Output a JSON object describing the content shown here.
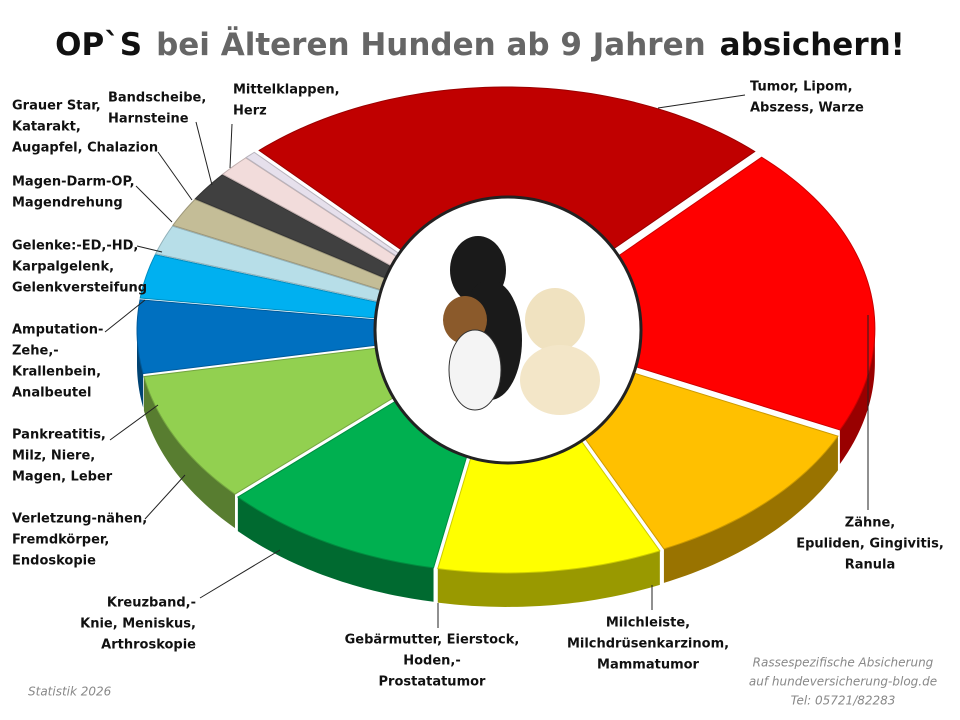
{
  "chart_data": {
    "type": "donut3d",
    "title_parts": [
      {
        "text": "OP`S",
        "color": "#111111"
      },
      {
        "text": "bei Älteren Hunden ab 9 Jahren",
        "color": "#666666"
      },
      {
        "text": "absichern!",
        "color": "#111111"
      }
    ],
    "labels": [
      [
        "Tumor, Lipom,",
        "Abszess, Warze"
      ],
      [
        "Zähne,",
        "Epuliden, Gingivitis,",
        "Ranula"
      ],
      [
        "Milchleiste,",
        "Milchdrüsenkarzinom,",
        "Mammatumor"
      ],
      [
        "Gebärmutter, Eierstock,",
        "Hoden,-",
        "Prostatatumor"
      ],
      [
        "Kreuzband,-",
        "Knie, Meniskus,",
        "Arthroskopie"
      ],
      [
        "Verletzung-nähen,",
        "Fremdkörper,",
        "Endoskopie"
      ],
      [
        "Pankreatitis,",
        "Milz, Niere,",
        "Magen, Leber"
      ],
      [
        "Amputation-",
        "Zehe,-",
        "Krallenbein,",
        "Analbeutel"
      ],
      [
        "Gelenke:-ED,-HD,",
        "Karpalgelenk,",
        "Gelenkversteifung"
      ],
      [
        "Magen-Darm-OP,",
        "Magendrehung"
      ],
      [
        "Grauer Star,",
        "Katarakt,",
        "Augapfel, Chalazion"
      ],
      [
        "Bandscheibe,",
        "Harnsteine"
      ],
      [
        "Mittelklappen,",
        "Herz"
      ]
    ],
    "values": [
      24,
      20,
      11,
      10,
      10,
      9,
      5,
      3,
      2,
      2,
      2,
      1.5,
      0.5
    ],
    "colors": [
      "#c00000",
      "#ff0000",
      "#ffc000",
      "#ffff00",
      "#00b050",
      "#92d050",
      "#0070c0",
      "#00b0f0",
      "#b7dee8",
      "#c4bd97",
      "#404040",
      "#f2dcdb",
      "#e6e0ec"
    ],
    "footer_left": "Statistik 2026",
    "footer_right": [
      "Rassespezifische  Absicherung",
      "auf hundeversicherung-blog.de",
      "Tel: 05721/82283"
    ]
  }
}
